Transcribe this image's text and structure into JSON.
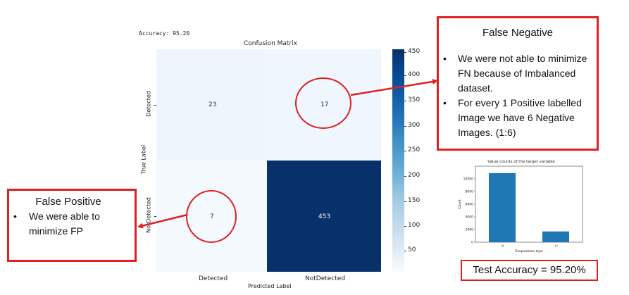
{
  "accuracy_text": "Accuracy: 95.20",
  "confusion_matrix": {
    "title": "Confusion Matrix",
    "xlabel": "Predicted Label",
    "ylabel": "True Label",
    "x_ticks": [
      "Detected",
      "NotDetected"
    ],
    "y_ticks": [
      "Detected",
      "NotDetected"
    ],
    "cells": [
      [
        "23",
        "17"
      ],
      [
        "7",
        "453"
      ]
    ],
    "colorbar_ticks": [
      "450",
      "400",
      "350",
      "300",
      "250",
      "200",
      "150",
      "100",
      "50"
    ],
    "colormap": "Blues"
  },
  "false_negative": {
    "title": "False Negative",
    "bullets": [
      "We were not able to minimize FN because of Imbalanced dataset.",
      "For every 1 Positive labelled Image we have 6 Negative Images. (1:6)"
    ]
  },
  "false_positive": {
    "title": "False Positive",
    "bullets": [
      "We were able to minimize FP"
    ]
  },
  "test_accuracy": "Test Accuracy = 95.20%",
  "chart_data": {
    "type": "bar",
    "title": "Value counts of the target variable",
    "xlabel": "Zooplankton type",
    "ylabel": "Count",
    "categories": [
      "0",
      "1"
    ],
    "values": [
      10900,
      1700
    ],
    "yticks": [
      "0",
      "2000",
      "4000",
      "6000",
      "8000",
      "10000"
    ],
    "ylim": [
      0,
      12000
    ],
    "color": "#1f77b4"
  },
  "colors": {
    "accent_red": "#e02020",
    "cell_light": "#eef5fc",
    "cell_lighter": "#f4f9fe",
    "cell_dark": "#08306b"
  }
}
